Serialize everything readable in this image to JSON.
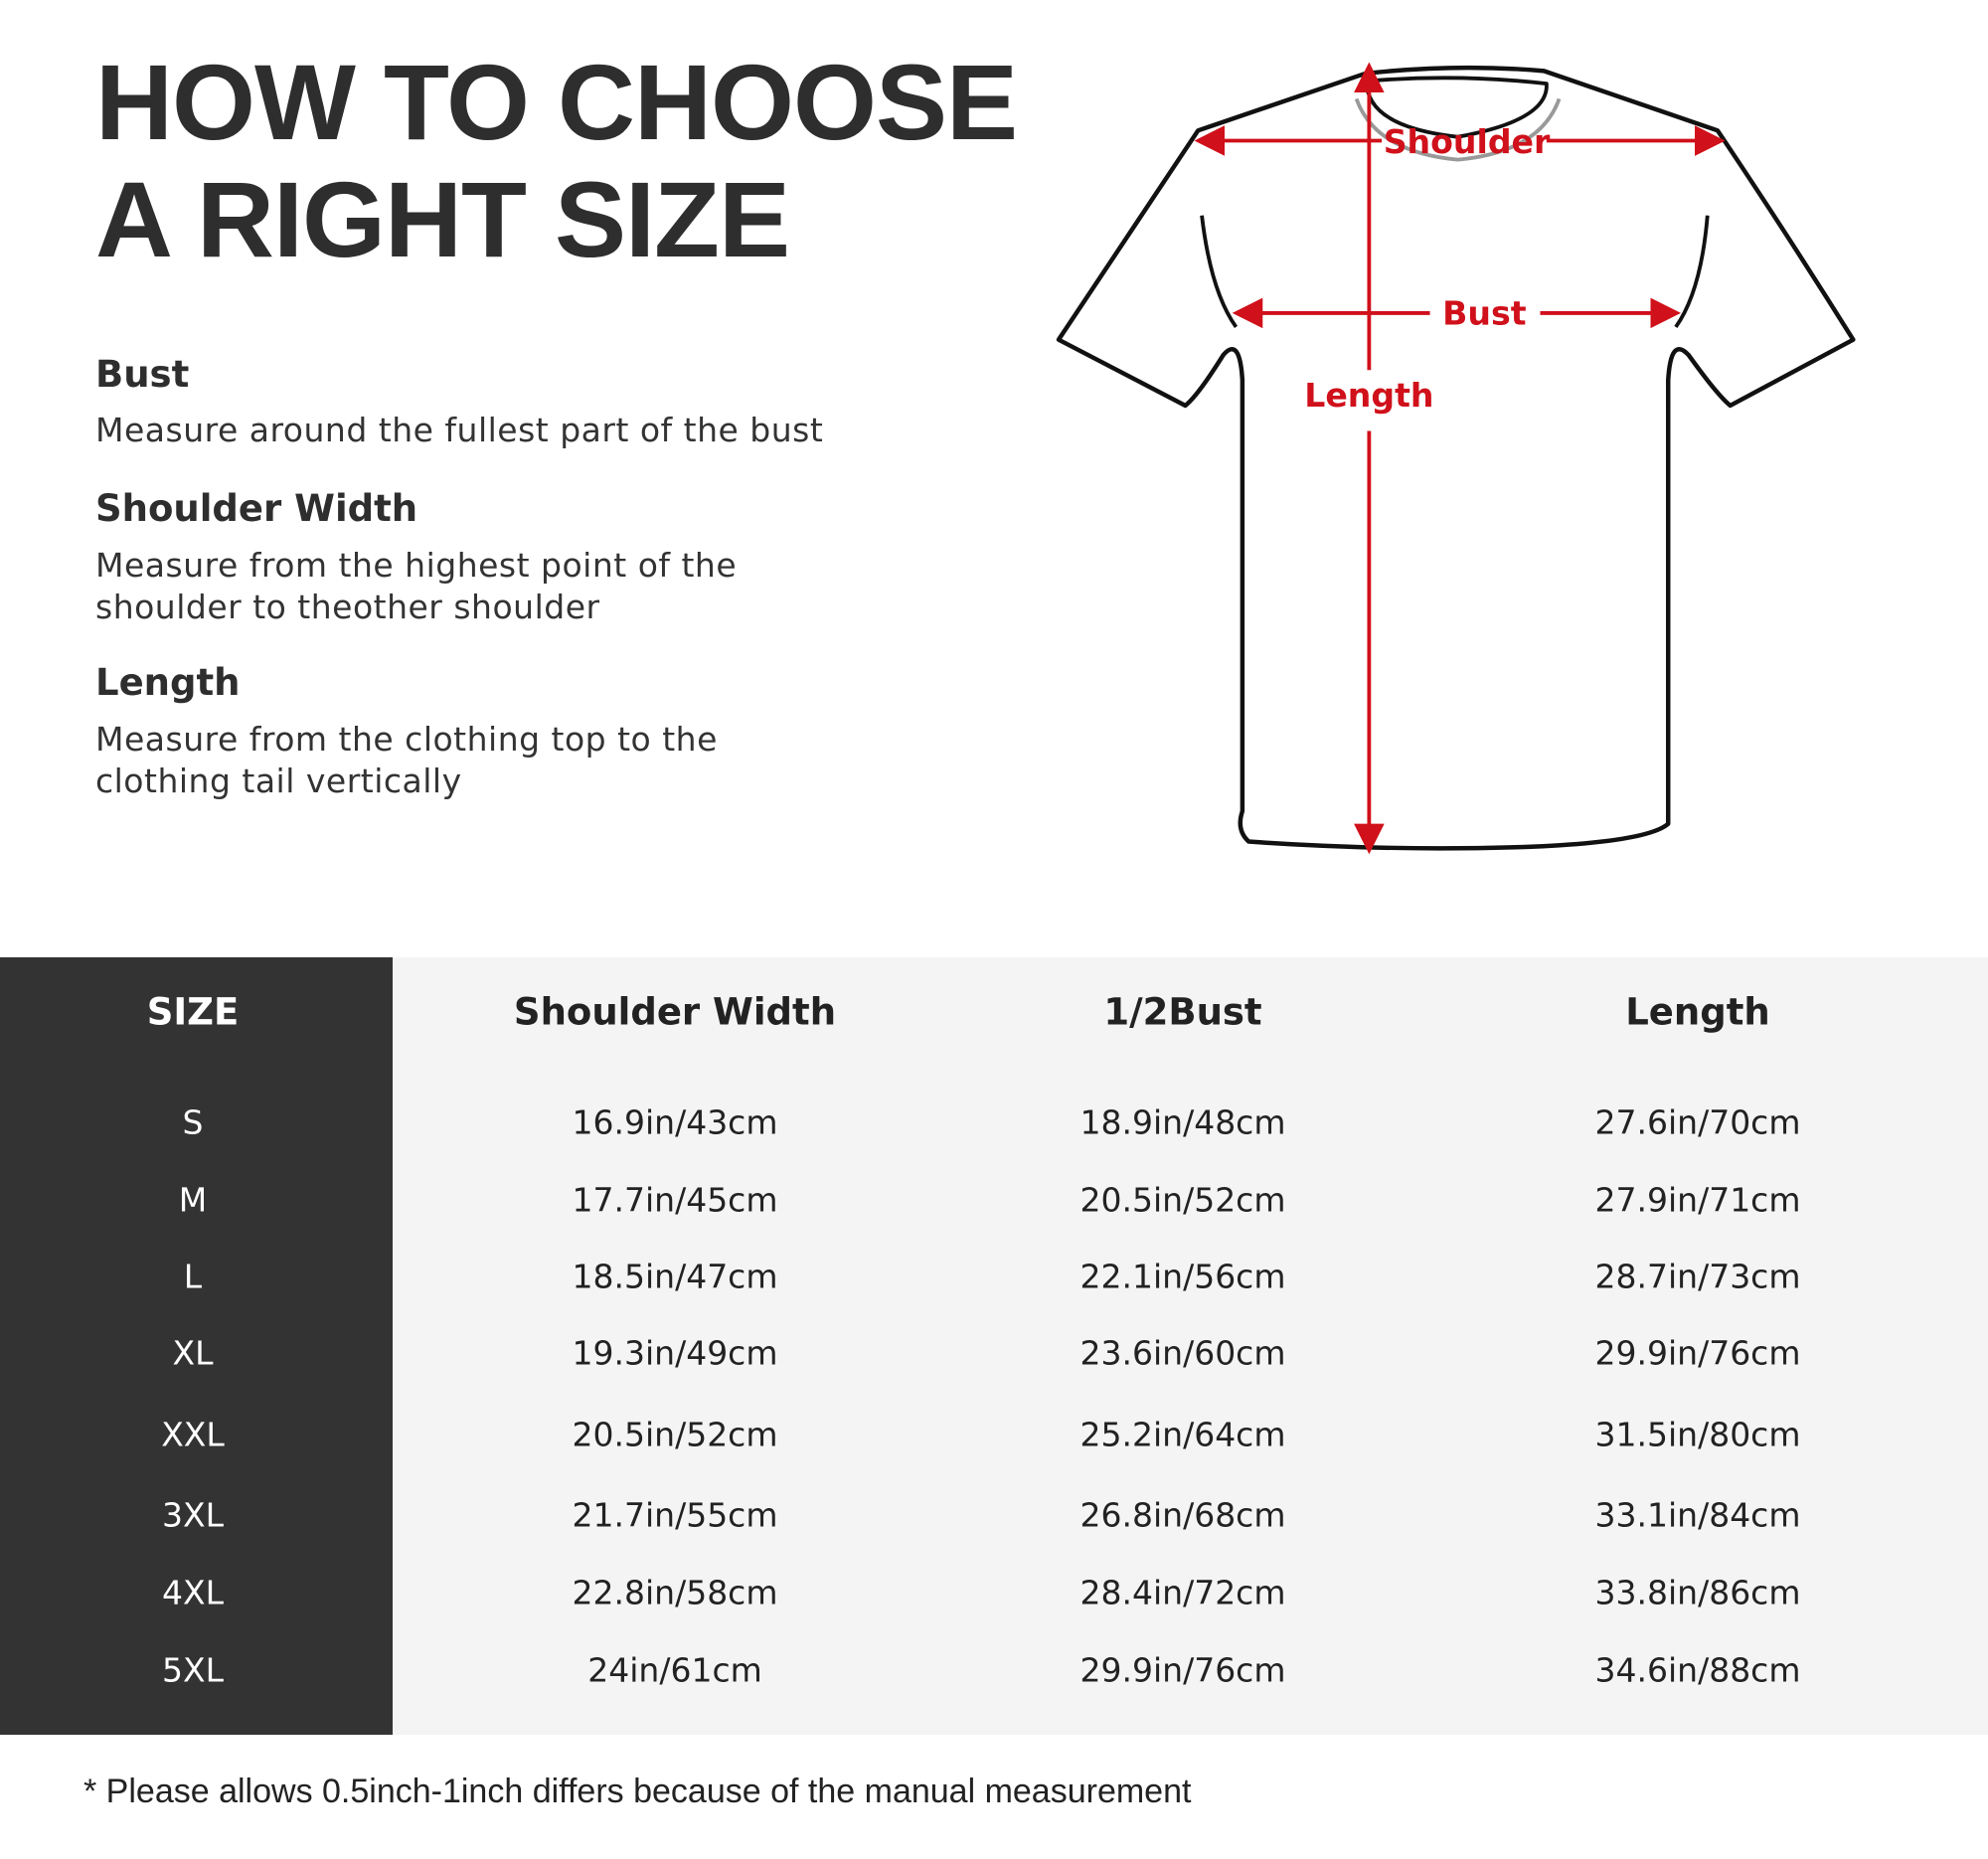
{
  "title": {
    "line1": "HOW TO CHOOSE",
    "line2": "A RIGHT SIZE"
  },
  "guide": [
    {
      "heading": "Bust",
      "lines": [
        "Measure around the fullest part of the bust"
      ]
    },
    {
      "heading": "Shoulder Width",
      "lines": [
        "Measure from the highest point of the",
        "shoulder to theother shoulder"
      ]
    },
    {
      "heading": "Length",
      "lines": [
        "Measure from the clothing top to the",
        "clothing tail vertically"
      ]
    }
  ],
  "diagram": {
    "shoulder": "Shoulder",
    "bust": "Bust",
    "length": "Length",
    "accent": "#d0101a"
  },
  "table": {
    "headers": [
      "SIZE",
      "Shoulder Width",
      "1/2Bust",
      "Length"
    ],
    "rows": [
      [
        "S",
        "16.9in/43cm",
        "18.9in/48cm",
        "27.6in/70cm"
      ],
      [
        "M",
        "17.7in/45cm",
        "20.5in/52cm",
        "27.9in/71cm"
      ],
      [
        "L",
        "18.5in/47cm",
        "22.1in/56cm",
        "28.7in/73cm"
      ],
      [
        "XL",
        "19.3in/49cm",
        "23.6in/60cm",
        "29.9in/76cm"
      ],
      [
        "XXL",
        "20.5in/52cm",
        "25.2in/64cm",
        "31.5in/80cm"
      ],
      [
        "3XL",
        "21.7in/55cm",
        "26.8in/68cm",
        "33.1in/84cm"
      ],
      [
        "4XL",
        "22.8in/58cm",
        "28.4in/72cm",
        "33.8in/86cm"
      ],
      [
        "5XL",
        "24in/61cm",
        "29.9in/76cm",
        "34.6in/88cm"
      ]
    ]
  },
  "note": "* Please allows 0.5inch-1inch differs because of the  manual measurement"
}
